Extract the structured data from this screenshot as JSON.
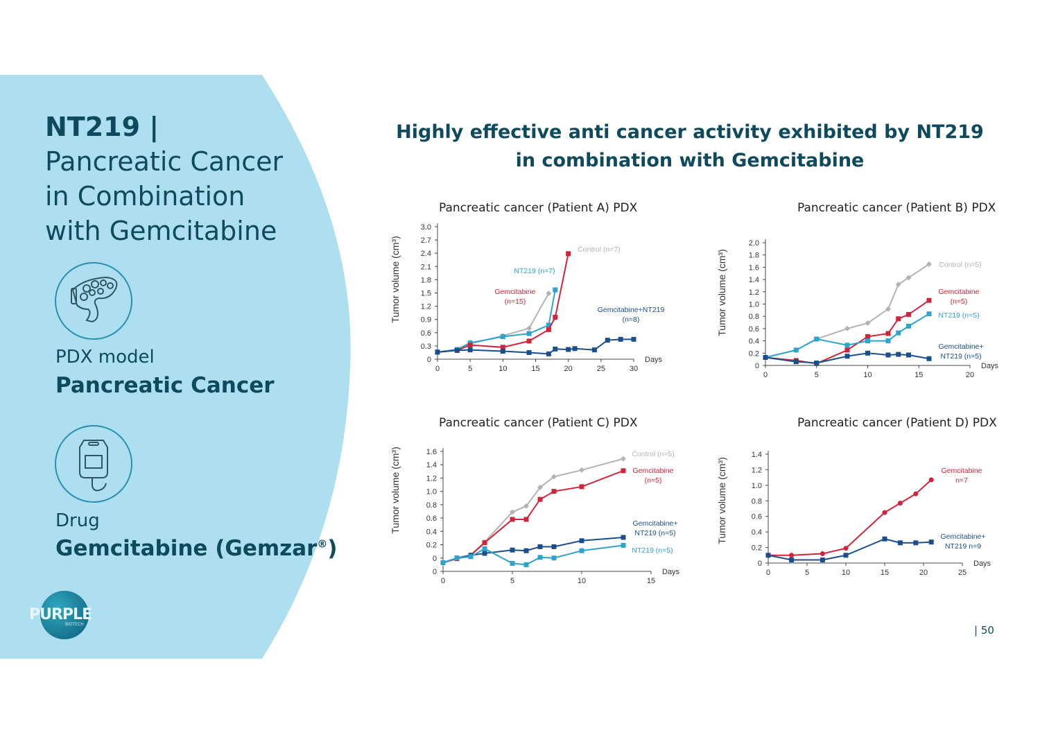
{
  "left_panel": {
    "title_bold": "NT219 |",
    "title_lines": [
      "Pancreatic Cancer",
      "in Combination",
      "with Gemcitabine"
    ],
    "model_label": "PDX model",
    "model_value": "Pancreatic Cancer",
    "drug_label": "Drug",
    "drug_value": "Gemcitabine (Gemzar",
    "drug_reg": "®",
    "drug_close": ")",
    "logo_text": "PURPLE",
    "logo_sub": "BIOTECH"
  },
  "headline": {
    "line1": "Highly effective anti cancer activity exhibited by NT219",
    "line2": "in combination with Gemcitabine"
  },
  "page_number": "| 50",
  "colors": {
    "panel": "#aedff0",
    "control": "#b3b3b3",
    "gemcitabine": "#d0243a",
    "nt219": "#2ea3cc",
    "combo": "#1a4f8c"
  },
  "chart_data": [
    {
      "type": "line",
      "title": "Pancreatic cancer (Patient A) PDX",
      "xlabel": "Days",
      "ylabel": "Tumor volume (cm³)",
      "xlim": [
        0,
        30
      ],
      "ylim": [
        0,
        3.0
      ],
      "xticks": [
        "0",
        "5",
        "10",
        "15",
        "20",
        "25",
        "30"
      ],
      "yticks": [
        "0",
        "0.3",
        "0.6",
        "0.9",
        "1.2",
        "1.5",
        "1.8",
        "2.1",
        "2.4",
        "2.7",
        "3.0"
      ],
      "series": [
        {
          "name": "Control (n=7)",
          "label_lines": [
            "Control (n=7)"
          ],
          "color_key": "control",
          "marker": "diamond",
          "x": [
            0,
            3,
            5,
            10,
            14,
            17
          ],
          "y": [
            0.16,
            0.22,
            0.35,
            0.53,
            0.7,
            1.49
          ]
        },
        {
          "name": "NT219 (n=7)",
          "label_lines": [
            "NT219 (n=7)"
          ],
          "color_key": "nt219",
          "marker": "square",
          "x": [
            0,
            3,
            5,
            10,
            14,
            17,
            18
          ],
          "y": [
            0.16,
            0.22,
            0.37,
            0.51,
            0.58,
            0.77,
            1.57
          ]
        },
        {
          "name": "Gemcitabine (n=15)",
          "label_lines": [
            "Gemcitabine",
            "(n=15)"
          ],
          "color_key": "gemcitabine",
          "marker": "square",
          "x": [
            0,
            3,
            5,
            10,
            14,
            17,
            18,
            20
          ],
          "y": [
            0.16,
            0.2,
            0.32,
            0.27,
            0.41,
            0.67,
            0.95,
            2.39
          ]
        },
        {
          "name": "Gemcitabine+NT219 (n=8)",
          "label_lines": [
            "Gemcitabine+NT219",
            "(n=8)"
          ],
          "color_key": "combo",
          "marker": "square",
          "x": [
            0,
            3,
            5,
            10,
            14,
            17,
            18,
            20,
            21,
            24,
            26,
            28,
            30
          ],
          "y": [
            0.16,
            0.2,
            0.21,
            0.18,
            0.15,
            0.12,
            0.23,
            0.22,
            0.24,
            0.21,
            0.43,
            0.45,
            0.45
          ]
        }
      ]
    },
    {
      "type": "line",
      "title": "Pancreatic cancer (Patient B) PDX",
      "xlabel": "Days",
      "ylabel": "Tumor volume (cm³)",
      "xlim": [
        0,
        20
      ],
      "ylim": [
        0,
        2.0
      ],
      "xticks": [
        "0",
        "5",
        "10",
        "15",
        "20"
      ],
      "yticks": [
        "0",
        "0.2",
        "0.4",
        "0.6",
        "0.8",
        "1.0",
        "1.2",
        "1.4",
        "1.6",
        "1.8",
        "2.0"
      ],
      "series": [
        {
          "name": "Control (n=5)",
          "label_lines": [
            "Control (n=5)"
          ],
          "color_key": "control",
          "marker": "diamond",
          "x": [
            0,
            3,
            5,
            8,
            10,
            12,
            13,
            14,
            16
          ],
          "y": [
            0.13,
            0.25,
            0.43,
            0.6,
            0.69,
            0.92,
            1.32,
            1.43,
            1.65
          ]
        },
        {
          "name": "Gemcitabine (n=5)",
          "label_lines": [
            "Gemcitabine",
            "(n=5)"
          ],
          "color_key": "gemcitabine",
          "marker": "square",
          "x": [
            0,
            3,
            5,
            8,
            10,
            12,
            13,
            14,
            16
          ],
          "y": [
            0.13,
            0.08,
            0.03,
            0.25,
            0.47,
            0.52,
            0.76,
            0.83,
            1.06
          ]
        },
        {
          "name": "NT219 (n=5)",
          "label_lines": [
            "NT219 (n=5)"
          ],
          "color_key": "nt219",
          "marker": "square",
          "x": [
            0,
            3,
            5,
            8,
            10,
            12,
            13,
            14,
            16
          ],
          "y": [
            0.13,
            0.25,
            0.43,
            0.33,
            0.4,
            0.4,
            0.53,
            0.64,
            0.84
          ]
        },
        {
          "name": "Gemcitabine+NT219 (n=5)",
          "label_lines": [
            "Gemcitabine+",
            "NT219 (n=5)"
          ],
          "color_key": "combo",
          "marker": "square",
          "x": [
            0,
            3,
            5,
            8,
            10,
            12,
            13,
            14,
            16
          ],
          "y": [
            0.13,
            0.06,
            0.04,
            0.15,
            0.2,
            0.17,
            0.18,
            0.17,
            0.11
          ]
        }
      ]
    },
    {
      "type": "line",
      "title": "Pancreatic cancer (Patient C) PDX",
      "xlabel": "Days",
      "ylabel": "Tumor volume (cm³)",
      "xlim": [
        0,
        15
      ],
      "ylim": [
        -0.2,
        1.6
      ],
      "xticks": [
        "0",
        "5",
        "10",
        "15"
      ],
      "yticks": [
        "0",
        "0",
        "0.2",
        "0.4",
        "0.6",
        "0.8",
        "1.0",
        "1.2",
        "1.4",
        "1.6"
      ],
      "series": [
        {
          "name": "Control (n=5)",
          "label_lines": [
            "Control (n=5)"
          ],
          "color_key": "control",
          "marker": "diamond",
          "x": [
            0,
            1,
            2,
            3,
            5,
            6,
            7,
            8,
            10,
            13
          ],
          "y": [
            -0.07,
            0.0,
            0.05,
            0.24,
            0.69,
            0.78,
            1.06,
            1.22,
            1.32,
            1.49
          ]
        },
        {
          "name": "Gemcitabine (n=5)",
          "label_lines": [
            "Gemcitabine",
            "(n=5)"
          ],
          "color_key": "gemcitabine",
          "marker": "square",
          "x": [
            0,
            1,
            2,
            3,
            5,
            6,
            7,
            8,
            10,
            13
          ],
          "y": [
            -0.07,
            -0.01,
            0.04,
            0.23,
            0.58,
            0.58,
            0.88,
            1.0,
            1.07,
            1.31
          ]
        },
        {
          "name": "Gemcitabine+NT219 (n=5)",
          "label_lines": [
            "Gemcitabine+",
            "NT219 (n=5)"
          ],
          "color_key": "combo",
          "marker": "square",
          "x": [
            0,
            1,
            2,
            3,
            5,
            6,
            7,
            8,
            10,
            13
          ],
          "y": [
            -0.07,
            0.0,
            0.04,
            0.07,
            0.12,
            0.11,
            0.17,
            0.17,
            0.26,
            0.31
          ]
        },
        {
          "name": "NT219 (n=5)",
          "label_lines": [
            "NT219 (n=5)"
          ],
          "color_key": "nt219",
          "marker": "square",
          "x": [
            0,
            1,
            2,
            3,
            5,
            6,
            7,
            8,
            10,
            13
          ],
          "y": [
            -0.07,
            0.0,
            0.02,
            0.14,
            -0.08,
            -0.1,
            0.01,
            0.0,
            0.11,
            0.19
          ]
        }
      ]
    },
    {
      "type": "line",
      "title": "Pancreatic cancer (Patient D) PDX",
      "xlabel": "Days",
      "ylabel": "Tumor volume (cm³)",
      "xlim": [
        0,
        25
      ],
      "ylim": [
        0,
        1.4
      ],
      "xticks": [
        "0",
        "5",
        "10",
        "15",
        "20",
        "25"
      ],
      "yticks": [
        "0",
        "0.2",
        "0.4",
        "0.6",
        "0.8",
        "1.0",
        "1.2",
        "1.4"
      ],
      "series": [
        {
          "name": "Gemcitabine n=7",
          "label_lines": [
            "Gemcitabine",
            "n=7"
          ],
          "color_key": "gemcitabine",
          "marker": "circle",
          "x": [
            0,
            3,
            7,
            10,
            15,
            17,
            19,
            21
          ],
          "y": [
            0.1,
            0.1,
            0.12,
            0.19,
            0.65,
            0.77,
            0.89,
            1.07
          ]
        },
        {
          "name": "Gemcitabine+NT219 n=9",
          "label_lines": [
            "Gemcitabine+",
            "NT219 n=9"
          ],
          "color_key": "combo",
          "marker": "square",
          "x": [
            0,
            3,
            7,
            10,
            15,
            17,
            19,
            21
          ],
          "y": [
            0.1,
            0.04,
            0.04,
            0.1,
            0.31,
            0.26,
            0.26,
            0.27
          ]
        }
      ]
    }
  ]
}
